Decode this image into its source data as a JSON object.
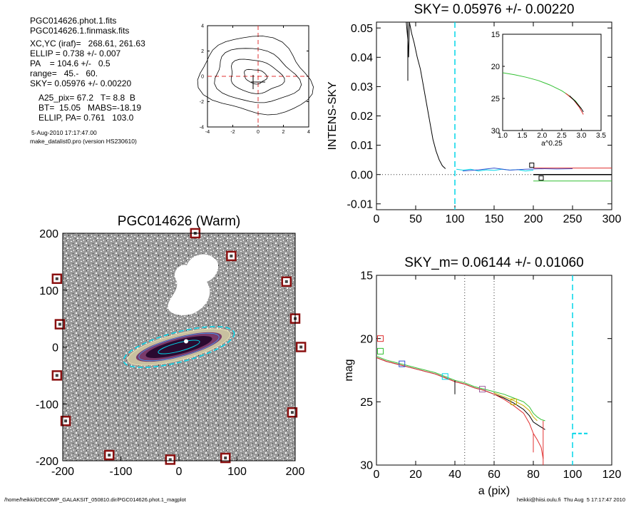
{
  "header": {
    "lines": [
      "PGC014626.phot.1.fits",
      "PGC014626.1.finmask.fits"
    ],
    "params": [
      "XC,YC (iraf)=   268.61, 261.63",
      "ELLIP = 0.738 +/- 0.007",
      "PA    = 104.6 +/-   0.5",
      "range=   45.-   60.",
      "SKY= 0.05976 +/- 0.00220"
    ],
    "params2": [
      "A25_pix= 67.2   T= 8.8  B",
      "BT=  15.05   MABS=-18.19",
      "ELLIP, PA= 0.761   103.0"
    ],
    "date": "5-Aug-2010 17:17:47.00",
    "program": "make_datalist0.pro (version HS230610)"
  },
  "footer": {
    "left": "/home/heikki/DECOMP_GALAKSIT_050810.dir/PGC014626.phot.1_magplot",
    "right": "heikki@hiisi.oulu.fi  Thu Aug  5 17:17:47 2010"
  },
  "colors": {
    "cyan": "#00d5e8",
    "red": "#e03030",
    "green": "#33c033",
    "blue": "#3050d0",
    "yellow": "#c8b000"
  },
  "chart_data": [
    {
      "id": "contour",
      "type": "contour",
      "xlim": [
        -4,
        4
      ],
      "ylim": [
        -4,
        4
      ],
      "xticks": [
        -4,
        -2,
        0,
        2,
        4
      ],
      "yticks": [
        -4,
        -2,
        0,
        2,
        4
      ],
      "center": [
        0,
        0
      ]
    },
    {
      "id": "sky",
      "type": "line",
      "title": "SKY= 0.05976 +/- 0.00220",
      "ylabel": "INTENS-SKY",
      "xlim": [
        0,
        300
      ],
      "ylim": [
        -0.012,
        0.052
      ],
      "xticks": [
        0,
        50,
        100,
        150,
        200,
        250,
        300
      ],
      "yticks": [
        -0.01,
        0.0,
        0.01,
        0.02,
        0.03,
        0.04,
        0.05
      ],
      "ytick_labels": [
        "-0.01",
        "0.00",
        "0.01",
        "0.02",
        "0.03",
        "0.04",
        "0.05"
      ],
      "vline": 100,
      "series": [
        {
          "color": "black",
          "x": [
            38,
            40,
            41,
            42,
            45,
            48,
            52,
            56,
            60,
            64,
            68,
            72,
            76,
            80,
            84,
            88
          ],
          "y": [
            0.052,
            0.046,
            0.04,
            0.052,
            0.048,
            0.045,
            0.04,
            0.036,
            0.03,
            0.024,
            0.018,
            0.012,
            0.008,
            0.005,
            0.003,
            0.002
          ]
        },
        {
          "color": "black",
          "x": [
            40,
            40
          ],
          "y": [
            0.052,
            0.032
          ]
        },
        {
          "color": "cyan",
          "x": [
            102,
            110,
            120,
            130,
            140,
            150,
            160,
            170,
            180,
            190,
            200
          ],
          "y": [
            0.0018,
            0.0015,
            0.0018,
            0.0012,
            0.0016,
            0.0014,
            0.0018,
            0.0015,
            0.0017,
            0.0012,
            0.0015
          ]
        },
        {
          "color": "blue",
          "x": [
            110,
            130,
            150,
            170,
            190,
            210,
            230,
            250
          ],
          "y": [
            0.0012,
            0.0016,
            0.0022,
            0.0015,
            0.0018,
            0.002,
            0.0019,
            0.002
          ]
        },
        {
          "color": "red",
          "x": [
            200,
            300
          ],
          "y": [
            0.0022,
            0.0022
          ]
        },
        {
          "color": "green",
          "x": [
            200,
            300
          ],
          "y": [
            -0.0022,
            -0.0022
          ]
        },
        {
          "color": "black",
          "x": [
            200,
            300
          ],
          "y": [
            0.0,
            0.0
          ]
        }
      ],
      "markers": [
        {
          "x": [
            198,
            210
          ],
          "y": [
            0.0032,
            -0.0012
          ]
        }
      ],
      "inset": {
        "xlabel": "a^0.25",
        "xlim": [
          1.0,
          3.5
        ],
        "ylim": [
          30,
          15
        ],
        "xticks": [
          1.0,
          1.5,
          2.0,
          2.5,
          3.0,
          3.5
        ],
        "xtick_labels": [
          "1.0",
          "1.5",
          "2.0",
          "2.5",
          "3.0",
          "3.5"
        ],
        "yticks": [
          15,
          20,
          25,
          30
        ],
        "series": [
          {
            "color": "green",
            "x": [
              1.0,
              1.3,
              1.6,
              1.9,
              2.2,
              2.5,
              2.7,
              2.85,
              3.0
            ],
            "y": [
              21.0,
              21.3,
              21.7,
              22.2,
              22.9,
              23.8,
              24.6,
              25.4,
              26.6
            ]
          },
          {
            "color": "red",
            "x": [
              2.6,
              2.8,
              2.95,
              3.05
            ],
            "y": [
              24.2,
              25.2,
              26.4,
              27.5
            ]
          },
          {
            "color": "black",
            "x": [
              2.7,
              2.85,
              3.0,
              3.05
            ],
            "y": [
              24.6,
              25.5,
              26.6,
              27.1
            ]
          }
        ]
      }
    },
    {
      "id": "image",
      "type": "image",
      "title": "PGC014626 (Warm)",
      "xlim": [
        -200,
        200
      ],
      "ylim": [
        -200,
        200
      ],
      "xticks": [
        -200,
        -100,
        0,
        100,
        200
      ],
      "yticks": [
        -200,
        -100,
        0,
        100,
        200
      ],
      "masked_stars": [
        [
          28,
          200
        ],
        [
          90,
          160
        ],
        [
          185,
          115
        ],
        [
          200,
          50
        ],
        [
          210,
          0
        ],
        [
          -210,
          120
        ],
        [
          -205,
          40
        ],
        [
          -210,
          -50
        ],
        [
          195,
          -115
        ],
        [
          -195,
          -130
        ],
        [
          80,
          -195
        ],
        [
          -15,
          -198
        ],
        [
          -120,
          -190
        ]
      ],
      "galaxy": {
        "x": 0,
        "y": 0,
        "a": 80,
        "ellip": 0.738,
        "pa_deg": 104.6
      }
    },
    {
      "id": "magprof",
      "type": "line",
      "title": "SKY_m=  0.06144 +/- 0.01060",
      "xlabel": "a (pix)",
      "ylabel": "mag",
      "xlim": [
        0,
        120
      ],
      "ylim": [
        30,
        15
      ],
      "xticks": [
        0,
        20,
        40,
        60,
        80,
        100,
        120
      ],
      "yticks": [
        15,
        20,
        25,
        30
      ],
      "vlines_dotted": [
        45,
        60
      ],
      "vline_dashed": 100,
      "sky_segment": {
        "x": [
          100,
          108
        ],
        "y": [
          27.5,
          27.5
        ]
      },
      "series": [
        {
          "color": "black",
          "x": [
            0,
            5,
            10,
            15,
            20,
            25,
            30,
            35,
            40,
            45,
            50,
            55,
            60,
            65,
            70,
            75,
            78,
            80,
            82,
            84,
            86
          ],
          "y": [
            21.5,
            21.8,
            22.0,
            22.2,
            22.4,
            22.6,
            22.8,
            23.1,
            23.4,
            23.6,
            23.9,
            24.1,
            24.4,
            24.7,
            25.1,
            25.6,
            26.1,
            26.6,
            26.8,
            27.0,
            27.2
          ]
        },
        {
          "color": "green",
          "x": [
            0,
            5,
            10,
            15,
            20,
            25,
            30,
            35,
            40,
            45,
            50,
            55,
            60,
            65,
            70,
            75,
            78,
            80,
            82,
            84,
            86
          ],
          "y": [
            21.4,
            21.7,
            21.9,
            22.1,
            22.3,
            22.5,
            22.7,
            23.0,
            23.3,
            23.5,
            23.8,
            24.0,
            24.2,
            24.4,
            24.7,
            25.0,
            25.4,
            25.9,
            26.2,
            26.4,
            26.5
          ]
        },
        {
          "color": "red",
          "x": [
            0,
            5,
            10,
            15,
            20,
            25,
            30,
            35,
            40,
            45,
            50,
            55,
            60,
            65,
            70,
            75,
            78,
            80,
            82,
            84,
            85
          ],
          "y": [
            21.5,
            21.8,
            22.0,
            22.2,
            22.4,
            22.6,
            22.8,
            23.1,
            23.4,
            23.6,
            23.9,
            24.1,
            24.4,
            24.8,
            25.3,
            25.9,
            26.7,
            27.5,
            28.0,
            28.6,
            29.5
          ]
        },
        {
          "color": "yellow",
          "x": [
            60,
            65,
            70,
            75,
            78,
            80,
            82
          ],
          "y": [
            24.3,
            24.6,
            24.9,
            25.3,
            25.7,
            26.2,
            26.5
          ]
        },
        {
          "color": "red",
          "x": [
            85,
            85
          ],
          "y": [
            26.5,
            30
          ]
        },
        {
          "color": "red",
          "x": [
            80,
            80
          ],
          "y": [
            27.5,
            29
          ]
        },
        {
          "color": "black",
          "x": [
            40,
            40
          ],
          "y": [
            23.3,
            24.4
          ]
        }
      ],
      "markers": [
        {
          "color": "red",
          "x": 2,
          "y": 20.0
        },
        {
          "color": "green",
          "x": 2,
          "y": 21.0
        },
        {
          "color": "blue",
          "x": 13,
          "y": 22.0
        },
        {
          "color": "cyan",
          "x": 35,
          "y": 23.0
        },
        {
          "color": "#a060a0",
          "x": 54,
          "y": 24.0
        },
        {
          "color": "yellow",
          "x": 70,
          "y": 25.0
        }
      ]
    }
  ]
}
